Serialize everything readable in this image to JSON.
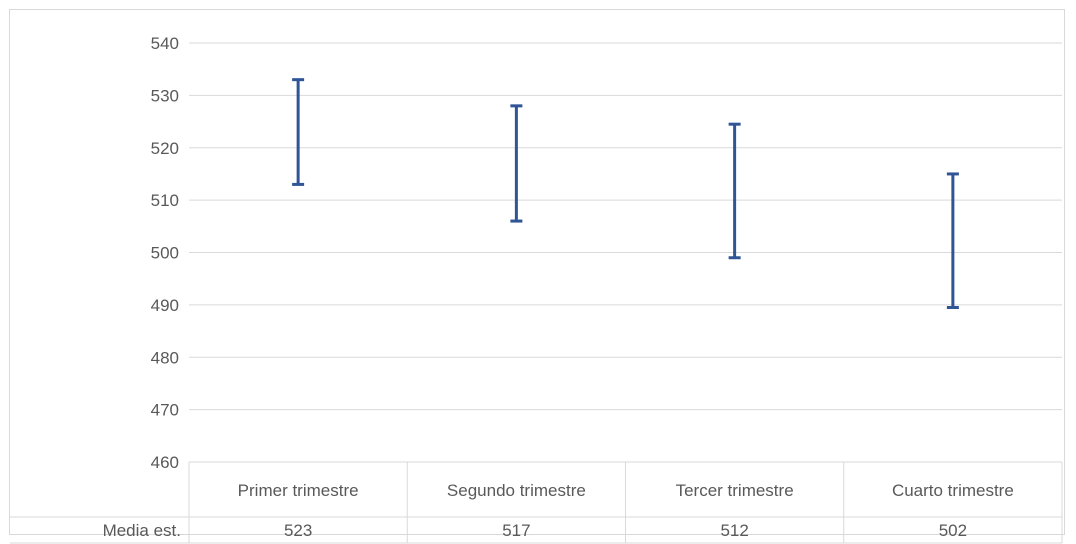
{
  "chart_data": {
    "type": "errorbar",
    "ylim": [
      460,
      540
    ],
    "yticks": [
      460,
      470,
      480,
      490,
      500,
      510,
      520,
      530,
      540
    ],
    "categories": [
      "Primer trimestre",
      "Segundo trimestre",
      "Tercer trimestre",
      "Cuarto trimestre"
    ],
    "intervals": [
      {
        "low": 513,
        "high": 533
      },
      {
        "low": 506,
        "high": 528
      },
      {
        "low": 499,
        "high": 524.5
      },
      {
        "low": 489.5,
        "high": 515
      }
    ],
    "table": {
      "row_label": "Media est.",
      "values": [
        "523",
        "517",
        "512",
        "502"
      ]
    },
    "grid": true,
    "bar_color": "#2f5597",
    "grid_color": "#d9d9d9"
  }
}
